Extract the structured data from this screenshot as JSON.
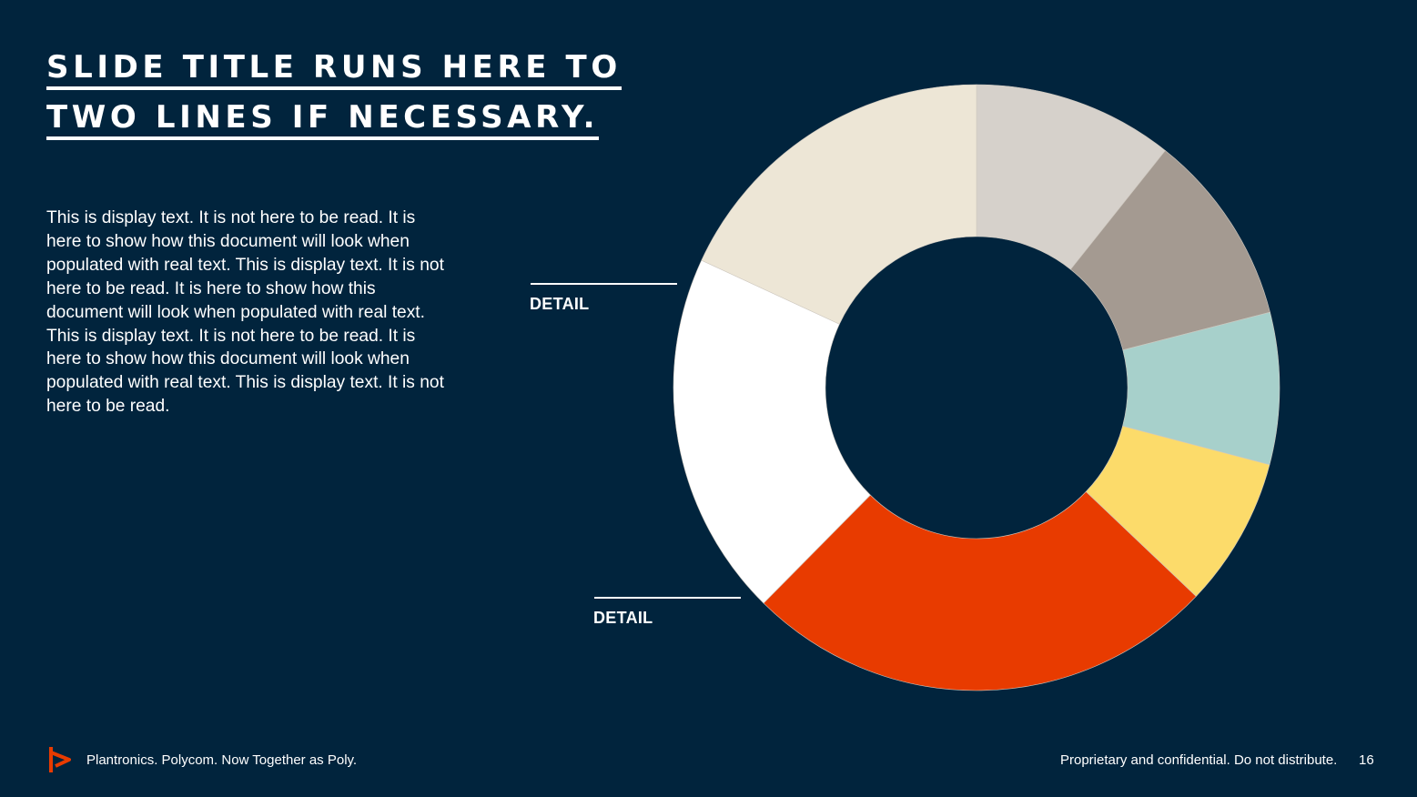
{
  "slide": {
    "title_line1": "SLIDE TITLE RUNS HERE TO",
    "title_line2": "TWO LINES IF NECESSARY.",
    "body": "This is display text. It is not here to be read. It is here to show how this document will look when populated with real text. This is display text. It is not here to be read. It is here to show how this document will look when populated with real text. This is display text. It is not here to be read. It is here to show how this document will look when populated with real text. This is display text. It is not here to be read."
  },
  "chart_data": {
    "type": "pie",
    "variant": "donut",
    "title": "",
    "start_angle": "12 o'clock",
    "direction": "clockwise",
    "slices": [
      {
        "value": 10.7,
        "color": "#d6d1cb"
      },
      {
        "value": 10.3,
        "color": "#a49a91"
      },
      {
        "value": 8.1,
        "color": "#a7d0cb"
      },
      {
        "value": 8.0,
        "color": "#fcdb6a"
      },
      {
        "value": 25.3,
        "color": "#e83b00"
      },
      {
        "value": 19.5,
        "color": "#ffffff"
      },
      {
        "value": 18.1,
        "color": "#ede6d6"
      }
    ],
    "labels": [
      "DETAIL",
      "DETAIL"
    ]
  },
  "footer": {
    "tagline": "Plantronics. Polycom. Now Together as Poly.",
    "confidential": "Proprietary and confidential. Do not distribute.",
    "page_number": "16",
    "logo_icon": "poly-logo-icon",
    "logo_color": "#e83b00"
  }
}
